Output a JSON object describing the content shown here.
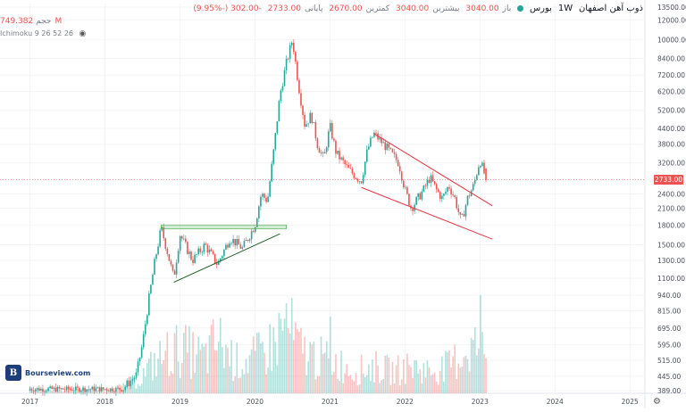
{
  "legend": {
    "symbol": "ذوب آهن اصفهان",
    "timeframe": "1W",
    "exchange": "بورس",
    "open_label": "باز",
    "open": "3040.00",
    "high_label": "بیشترین",
    "high": "3040.00",
    "low_label": "کمترین",
    "low": "2670.00",
    "close_label": "پایانی",
    "close": "2733.00",
    "change": "-302.00 (-9.95%)"
  },
  "volume_legend": {
    "label": "حجم",
    "value": "749.382M"
  },
  "indicator": {
    "label": "Ichimoku 9 26 52 26"
  },
  "price_tag": "2733.00",
  "brand": {
    "mark": "B",
    "name": "Bourseview.com"
  },
  "colors": {
    "up": "#26a69a",
    "down": "#ef5350",
    "trend_red": "#e53946",
    "trend_green": "#1b5e20",
    "box": "#4caf50"
  },
  "chart_data": {
    "type": "candlestick",
    "yscale": "log",
    "ylim": [
      380,
      13500
    ],
    "y_ticks": [
      "13500.00",
      "12000.00",
      "10000.00",
      "8400.00",
      "7200.00",
      "6200.00",
      "5200.00",
      "4400.00",
      "3800.00",
      "3200.00",
      "2733.00",
      "2400.00",
      "2100.00",
      "1800.00",
      "1500.00",
      "1300.00",
      "1100.00",
      "940.00",
      "815.00",
      "695.00",
      "595.00",
      "515.00",
      "445.00",
      "389.00"
    ],
    "x_ticks": [
      "2017",
      "2018",
      "2019",
      "2020",
      "2021",
      "2022",
      "2023",
      "2024",
      "2025"
    ],
    "last_close": 2733,
    "price_path": [
      {
        "t": "2018-04",
        "close": 400
      },
      {
        "t": "2018-06",
        "close": 450
      },
      {
        "t": "2018-07",
        "close": 600
      },
      {
        "t": "2018-08",
        "close": 900
      },
      {
        "t": "2018-09",
        "close": 1300
      },
      {
        "t": "2018-10",
        "close": 1750
      },
      {
        "t": "2018-11",
        "close": 1400
      },
      {
        "t": "2018-12",
        "close": 1100
      },
      {
        "t": "2019-01",
        "close": 1650
      },
      {
        "t": "2019-03",
        "close": 1300
      },
      {
        "t": "2019-05",
        "close": 1500
      },
      {
        "t": "2019-07",
        "close": 1250
      },
      {
        "t": "2019-09",
        "close": 1600
      },
      {
        "t": "2019-11",
        "close": 1450
      },
      {
        "t": "2020-01",
        "close": 1800
      },
      {
        "t": "2020-02",
        "close": 2400
      },
      {
        "t": "2020-03",
        "close": 2250
      },
      {
        "t": "2020-04",
        "close": 3600
      },
      {
        "t": "2020-05",
        "close": 6000
      },
      {
        "t": "2020-06",
        "close": 8000
      },
      {
        "t": "2020-07",
        "close": 10000
      },
      {
        "t": "2020-08",
        "close": 6500
      },
      {
        "t": "2020-09",
        "close": 4500
      },
      {
        "t": "2020-10",
        "close": 5000
      },
      {
        "t": "2020-11",
        "close": 3800
      },
      {
        "t": "2020-12",
        "close": 3300
      },
      {
        "t": "2021-01",
        "close": 4500
      },
      {
        "t": "2021-02",
        "close": 3500
      },
      {
        "t": "2021-04",
        "close": 3000
      },
      {
        "t": "2021-06",
        "close": 2700
      },
      {
        "t": "2021-07",
        "close": 3600
      },
      {
        "t": "2021-08",
        "close": 4200
      },
      {
        "t": "2021-10",
        "close": 3700
      },
      {
        "t": "2021-12",
        "close": 3200
      },
      {
        "t": "2022-01",
        "close": 2500
      },
      {
        "t": "2022-02",
        "close": 2100
      },
      {
        "t": "2022-04",
        "close": 2500
      },
      {
        "t": "2022-05",
        "close": 2800
      },
      {
        "t": "2022-06",
        "close": 2500
      },
      {
        "t": "2022-07",
        "close": 2300
      },
      {
        "t": "2022-08",
        "close": 2600
      },
      {
        "t": "2022-09",
        "close": 2300
      },
      {
        "t": "2022-10",
        "close": 1850
      },
      {
        "t": "2022-11",
        "close": 2300
      },
      {
        "t": "2022-12",
        "close": 2600
      },
      {
        "t": "2023-01",
        "close": 3300
      },
      {
        "t": "2023-02",
        "close": 2733
      }
    ],
    "volume_profile": [
      {
        "t": "2017-01",
        "v": 5
      },
      {
        "t": "2017-06",
        "v": 4
      },
      {
        "t": "2017-10",
        "v": 6
      },
      {
        "t": "2018-01",
        "v": 5
      },
      {
        "t": "2018-05",
        "v": 8
      },
      {
        "t": "2018-07",
        "v": 20
      },
      {
        "t": "2018-09",
        "v": 35
      },
      {
        "t": "2018-11",
        "v": 45
      },
      {
        "t": "2019-01",
        "v": 50
      },
      {
        "t": "2019-05",
        "v": 40
      },
      {
        "t": "2019-07",
        "v": 60
      },
      {
        "t": "2019-10",
        "v": 35
      },
      {
        "t": "2020-01",
        "v": 40
      },
      {
        "t": "2020-04",
        "v": 55
      },
      {
        "t": "2020-06",
        "v": 80
      },
      {
        "t": "2020-08",
        "v": 50
      },
      {
        "t": "2020-11",
        "v": 40
      },
      {
        "t": "2021-02",
        "v": 35
      },
      {
        "t": "2021-05",
        "v": 25
      },
      {
        "t": "2021-08",
        "v": 30
      },
      {
        "t": "2021-11",
        "v": 25
      },
      {
        "t": "2022-02",
        "v": 30
      },
      {
        "t": "2022-05",
        "v": 25
      },
      {
        "t": "2022-08",
        "v": 30
      },
      {
        "t": "2022-11",
        "v": 50
      },
      {
        "t": "2023-01",
        "v": 55
      },
      {
        "t": "2023-02",
        "v": 40
      }
    ],
    "trendlines": [
      {
        "name": "upper-channel",
        "from": {
          "t": "2021-08",
          "price": 4200
        },
        "to": {
          "t": "2023-03",
          "price": 2150
        },
        "color": "red"
      },
      {
        "name": "lower-channel",
        "from": {
          "t": "2021-06",
          "price": 2550
        },
        "to": {
          "t": "2023-03",
          "price": 1580
        },
        "color": "red"
      },
      {
        "name": "rising-support",
        "from": {
          "t": "2018-12",
          "price": 1060
        },
        "to": {
          "t": "2020-05",
          "price": 1660
        },
        "color": "green"
      }
    ],
    "box_zone": {
      "from_t": "2018-10",
      "to_t": "2020-06",
      "high": 1800,
      "low": 1740
    }
  }
}
